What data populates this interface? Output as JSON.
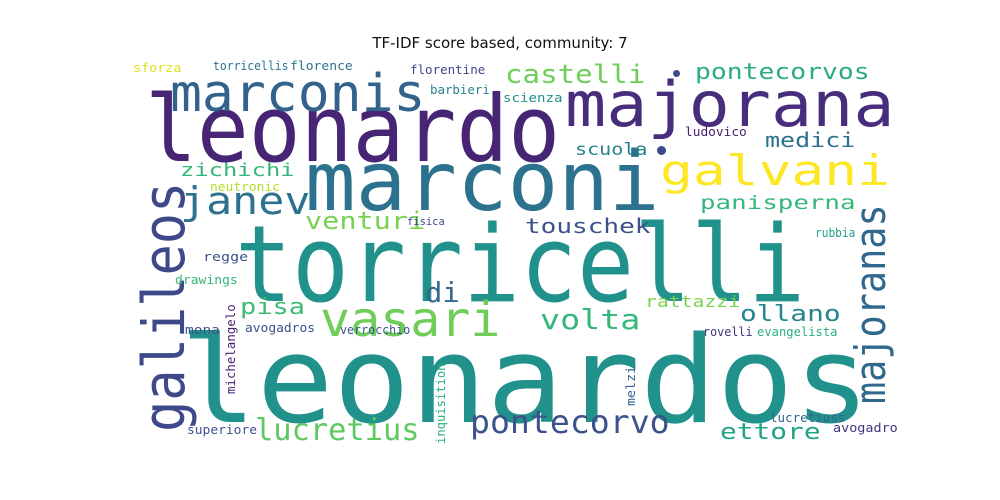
{
  "chart_data": {
    "type": "wordcloud",
    "title": "TF-IDF score based, community: 7",
    "words": [
      {
        "text": "leonardos",
        "weight": 100,
        "color": "#21918c"
      },
      {
        "text": "torricelli",
        "weight": 88,
        "color": "#21918c"
      },
      {
        "text": "leonardo",
        "weight": 80,
        "color": "#482475"
      },
      {
        "text": "marconi",
        "weight": 78,
        "color": "#2c728e"
      },
      {
        "text": "majorana",
        "weight": 62,
        "color": "#472d7b"
      },
      {
        "text": "galileos",
        "weight": 50,
        "color": "#3e4989"
      },
      {
        "text": "marconis",
        "weight": 50,
        "color": "#33638d"
      },
      {
        "text": "vasari",
        "weight": 47,
        "color": "#6ece58"
      },
      {
        "text": "majoranas",
        "weight": 40,
        "color": "#31688e"
      },
      {
        "text": "galvani",
        "weight": 40,
        "color": "#fde725"
      },
      {
        "text": "janev",
        "weight": 34,
        "color": "#2c728e"
      },
      {
        "text": "pontecorvo",
        "weight": 28,
        "color": "#3b528b"
      },
      {
        "text": "lucretius",
        "weight": 26,
        "color": "#5ec962"
      },
      {
        "text": "castelli",
        "weight": 24,
        "color": "#6ece58"
      },
      {
        "text": "volta",
        "weight": 24,
        "color": "#35b779"
      },
      {
        "text": "venturi",
        "weight": 22,
        "color": "#7ad151"
      },
      {
        "text": "di",
        "weight": 22,
        "color": "#31688e"
      },
      {
        "text": "pontecorvos",
        "weight": 21,
        "color": "#29af7f"
      },
      {
        "text": "ollano",
        "weight": 20,
        "color": "#25858e"
      },
      {
        "text": "pisa",
        "weight": 20,
        "color": "#3fbc73"
      },
      {
        "text": "ettore",
        "weight": 20,
        "color": "#20a386"
      },
      {
        "text": "touschek",
        "weight": 19,
        "color": "#3b528b"
      },
      {
        "text": "zichichi",
        "weight": 18,
        "color": "#35b779"
      },
      {
        "text": "medici",
        "weight": 18,
        "color": "#2c728e"
      },
      {
        "text": "panisperna",
        "weight": 17,
        "color": "#35b779"
      },
      {
        "text": "scuola",
        "weight": 15,
        "color": "#26828e"
      },
      {
        "text": "rattazzi",
        "weight": 15,
        "color": "#7ad151"
      },
      {
        "text": "fisica",
        "weight": 11,
        "color": "#3e4989"
      },
      {
        "text": "sforza",
        "weight": 11,
        "color": "#dde318"
      },
      {
        "text": "torricellis",
        "weight": 11,
        "color": "#2c728e"
      },
      {
        "text": "florence",
        "weight": 11,
        "color": "#2c728e"
      },
      {
        "text": "florentine",
        "weight": 11,
        "color": "#3e4989"
      },
      {
        "text": "barbieri",
        "weight": 11,
        "color": "#25858e"
      },
      {
        "text": "scienza",
        "weight": 11,
        "color": "#21918c"
      },
      {
        "text": "ludovico",
        "weight": 11,
        "color": "#481f70"
      },
      {
        "text": "neutronic",
        "weight": 11,
        "color": "#b5de2b"
      },
      {
        "text": "regge",
        "weight": 11,
        "color": "#3b528b"
      },
      {
        "text": "drawings",
        "weight": 11,
        "color": "#35b779"
      },
      {
        "text": "mona",
        "weight": 11,
        "color": "#3b528b"
      },
      {
        "text": "verrocchio",
        "weight": 11,
        "color": "#3b528b"
      },
      {
        "text": "michelangelo",
        "weight": 11,
        "color": "#482173"
      },
      {
        "text": "avogadros",
        "weight": 11,
        "color": "#3b528b"
      },
      {
        "text": "rubbia",
        "weight": 11,
        "color": "#1fa188"
      },
      {
        "text": "rovelli",
        "weight": 11,
        "color": "#46337e"
      },
      {
        "text": "evangelista",
        "weight": 11,
        "color": "#2ab07f"
      },
      {
        "text": "inquisition",
        "weight": 11,
        "color": "#2ab07f"
      },
      {
        "text": "melzi",
        "weight": 11,
        "color": "#33638d"
      },
      {
        "text": "superiore",
        "weight": 11,
        "color": "#3b528b"
      },
      {
        "text": "lucretiuss",
        "weight": 11,
        "color": "#33638d"
      },
      {
        "text": "avogadro",
        "weight": 11,
        "color": "#46337e"
      }
    ],
    "dots": [
      {
        "color": "#3e4989"
      },
      {
        "color": "#3e4989"
      }
    ]
  }
}
